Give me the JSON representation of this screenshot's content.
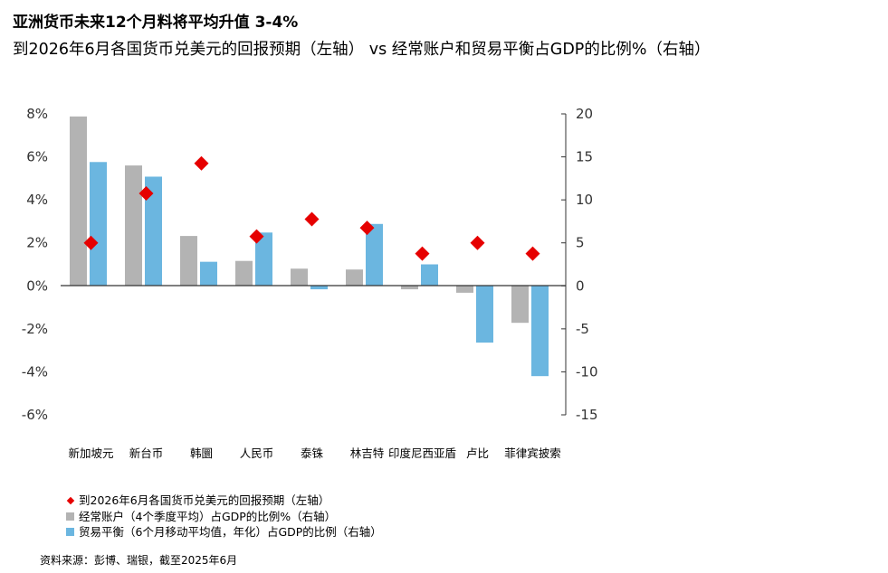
{
  "header": {
    "title": "亚洲货币未来12个月料将平均升值 3-4%",
    "subtitle": "到2026年6月各国货币兑美元的回报预期（左轴） vs 经常账户和贸易平衡占GDP的比例%（右轴）"
  },
  "chart_data": {
    "type": "bar",
    "categories": [
      "新加坡元",
      "新台币",
      "韩圜",
      "人民币",
      "泰铢",
      "林吉特",
      "印度尼西亚盾",
      "卢比",
      "菲律宾披索"
    ],
    "series": [
      {
        "name": "到2026年6月各国货币兑美元的回报预期（左轴）",
        "kind": "diamond",
        "axis": "left",
        "values": [
          2.0,
          4.3,
          5.7,
          2.3,
          3.1,
          2.7,
          1.5,
          2.0,
          1.5
        ]
      },
      {
        "name": "经常账户（4个季度平均）占GDP的比例%（右轴）",
        "kind": "bar",
        "axis": "right",
        "values": [
          19.7,
          14.0,
          5.8,
          2.9,
          2.0,
          1.9,
          -0.4,
          -0.8,
          -4.3
        ]
      },
      {
        "name": "贸易平衡（6个月移动平均值，年化）占GDP的比例（右轴）",
        "kind": "bar",
        "axis": "right",
        "values": [
          14.4,
          12.7,
          2.8,
          6.2,
          -0.4,
          7.2,
          2.5,
          -6.6,
          -10.5
        ]
      }
    ],
    "left_axis": {
      "ylim": [
        -6,
        8
      ],
      "ticks": [
        8,
        6,
        4,
        2,
        0,
        -2,
        -4,
        -6
      ],
      "tick_labels": [
        "8%",
        "6%",
        "4%",
        "2%",
        "0%",
        "-2%",
        "-4%",
        "-6%"
      ]
    },
    "right_axis": {
      "ylim": [
        -15,
        20
      ],
      "ticks": [
        20,
        15,
        10,
        5,
        0,
        -5,
        -10,
        -15
      ],
      "tick_labels": [
        "20",
        "15",
        "10",
        "5",
        "0",
        "-5",
        "-10",
        "-15"
      ]
    },
    "colors": {
      "diamond": "#E60000",
      "current_account": "#B3B3B3",
      "trade_balance": "#6BB6E0",
      "axis": "#333333"
    },
    "legend_position": "bottom-left",
    "grid": false
  },
  "source": "资料来源：彭博、瑞银，截至2025年6月"
}
